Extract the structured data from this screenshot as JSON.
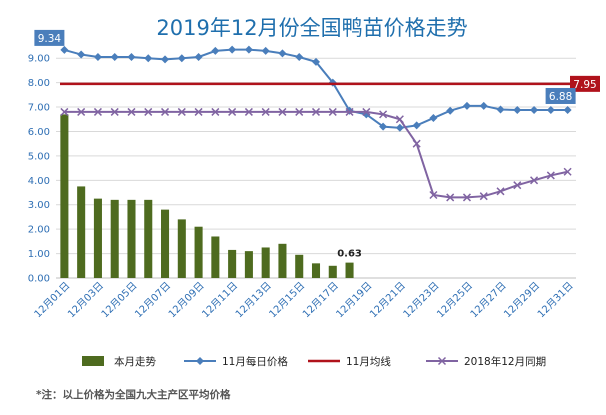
{
  "chart_data": {
    "type": "bar",
    "title": "2019年12月份全国鸭苗价格走势",
    "categories": [
      "12月01日",
      "12月02日",
      "12月03日",
      "12月04日",
      "12月05日",
      "12月06日",
      "12月07日",
      "12月08日",
      "12月09日",
      "12月10日",
      "12月11日",
      "12月12日",
      "12月13日",
      "12月14日",
      "12月15日",
      "12月16日",
      "12月17日",
      "12月18日",
      "12月19日",
      "12月20日",
      "12月21日",
      "12月22日",
      "12月23日",
      "12月24日",
      "12月25日",
      "12月26日",
      "12月27日",
      "12月28日",
      "12月29日",
      "12月30日",
      "12月31日"
    ],
    "x_tick_labels": [
      "12月01日",
      "12月03日",
      "12月05日",
      "12月07日",
      "12月09日",
      "12月11日",
      "12月13日",
      "12月15日",
      "12月17日",
      "12月19日",
      "12月21日",
      "12月23日",
      "12月25日",
      "12月27日",
      "12月29日",
      "12月31日"
    ],
    "y_ticks": [
      "0.00",
      "1.00",
      "2.00",
      "3.00",
      "4.00",
      "5.00",
      "6.00",
      "7.00",
      "8.00",
      "9.00"
    ],
    "ylim": [
      0,
      9.5
    ],
    "grid": true,
    "legend_position": "bottom",
    "series": [
      {
        "name": "本月走势",
        "type": "bar",
        "color": "#4e6b1f",
        "values": [
          6.7,
          3.75,
          3.25,
          3.2,
          3.2,
          3.2,
          2.8,
          2.4,
          2.1,
          1.7,
          1.15,
          1.1,
          1.25,
          1.4,
          0.95,
          0.6,
          0.5,
          0.63,
          null,
          null,
          null,
          null,
          null,
          null,
          null,
          null,
          null,
          null,
          null,
          null,
          null
        ]
      },
      {
        "name": "11月每日价格",
        "type": "line",
        "color": "#4a7ebb",
        "marker": "diamond",
        "values": [
          9.34,
          9.15,
          9.05,
          9.05,
          9.05,
          9.0,
          8.95,
          9.0,
          9.05,
          9.3,
          9.35,
          9.35,
          9.3,
          9.2,
          9.05,
          8.85,
          8.0,
          6.85,
          6.7,
          6.2,
          6.15,
          6.25,
          6.55,
          6.85,
          7.05,
          7.05,
          6.9,
          6.88,
          6.88,
          6.88,
          6.88
        ]
      },
      {
        "name": "11月均线",
        "type": "line",
        "color": "#b0121b",
        "values": [
          7.95,
          7.95,
          7.95,
          7.95,
          7.95,
          7.95,
          7.95,
          7.95,
          7.95,
          7.95,
          7.95,
          7.95,
          7.95,
          7.95,
          7.95,
          7.95,
          7.95,
          7.95,
          7.95,
          7.95,
          7.95,
          7.95,
          7.95,
          7.95,
          7.95,
          7.95,
          7.95,
          7.95,
          7.95,
          7.95,
          7.95
        ]
      },
      {
        "name": "2018年12月同期",
        "type": "line",
        "color": "#8064a2",
        "marker": "x",
        "values": [
          6.8,
          6.8,
          6.8,
          6.8,
          6.8,
          6.8,
          6.8,
          6.8,
          6.8,
          6.8,
          6.8,
          6.8,
          6.8,
          6.8,
          6.8,
          6.8,
          6.8,
          6.8,
          6.8,
          6.7,
          6.5,
          5.5,
          3.4,
          3.3,
          3.3,
          3.35,
          3.55,
          3.8,
          4.0,
          4.2,
          4.35
        ]
      }
    ],
    "annotations": [
      {
        "text": "9.34",
        "series": "11月每日价格",
        "x": "12月01日",
        "y": 9.34
      },
      {
        "text": "7.95",
        "series": "11月均线",
        "x": "12月31日",
        "y": 7.95
      },
      {
        "text": "6.88",
        "series": "11月每日价格",
        "x": "12月31日",
        "y": 6.88
      },
      {
        "text": "0.63",
        "series": "本月走势",
        "x": "12月18日",
        "y": 0.63
      }
    ],
    "footnote": "*注：以上价格为全国九大主产区平均价格"
  }
}
